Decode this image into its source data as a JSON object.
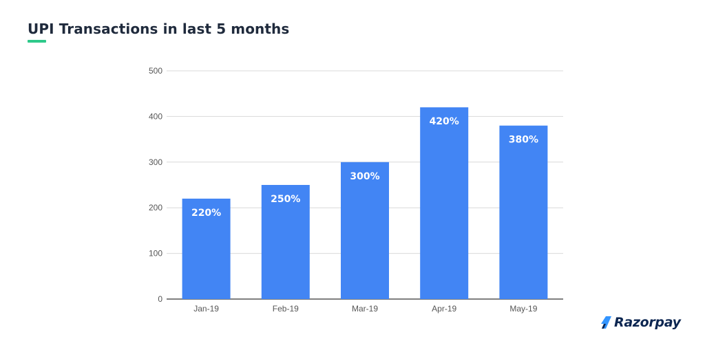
{
  "header": {
    "title": "UPI Transactions in last 5 months",
    "accent_color": "#2ec98a"
  },
  "brand": {
    "name": "Razorpay",
    "icon": "razorpay-logo-icon",
    "color": "#0c2651"
  },
  "chart_data": {
    "type": "bar",
    "categories": [
      "Jan-19",
      "Feb-19",
      "Mar-19",
      "Apr-19",
      "May-19"
    ],
    "values": [
      220,
      250,
      300,
      420,
      380
    ],
    "data_labels": [
      "220%",
      "250%",
      "300%",
      "420%",
      "380%"
    ],
    "yticks": [
      0,
      100,
      200,
      300,
      400,
      500
    ],
    "ylim": [
      0,
      500
    ],
    "grid": true,
    "bar_color": "#4285f4",
    "title": "",
    "xlabel": "",
    "ylabel": ""
  }
}
